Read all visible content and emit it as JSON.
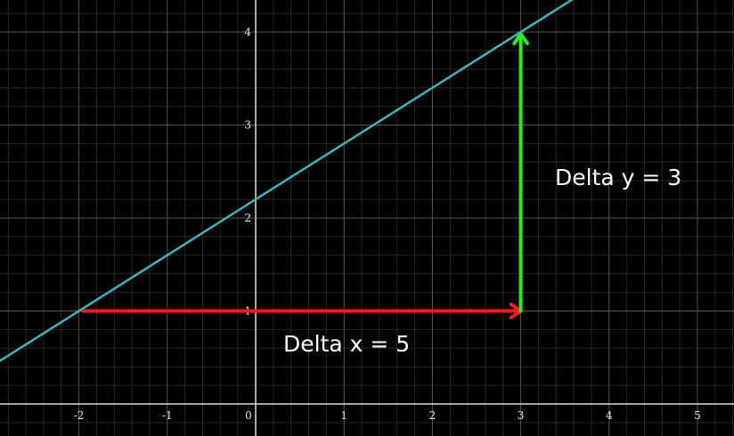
{
  "chart_data": {
    "type": "line",
    "title": "",
    "xlabel": "",
    "ylabel": "",
    "xlim": [
      -2.9,
      5.4
    ],
    "ylim": [
      -0.36,
      4.3
    ],
    "grid": true,
    "x_ticks": [
      "-2",
      "-1",
      "0",
      "1",
      "2",
      "3",
      "4",
      "5"
    ],
    "y_ticks": [
      "1",
      "2",
      "3",
      "4"
    ],
    "series": [
      {
        "color": "#3fb4bd",
        "x": [
          -3.0,
          3.65
        ],
        "y": [
          0.4,
          4.39
        ]
      }
    ],
    "arrows": [
      {
        "color": "#ff1a1a",
        "from": [
          -1.95,
          1.0
        ],
        "to": [
          3.0,
          1.0
        ],
        "label": "Delta x = 5"
      },
      {
        "color": "#22ee22",
        "from": [
          3.0,
          1.0
        ],
        "to": [
          3.0,
          3.98
        ],
        "label": "Delta y = 3"
      }
    ],
    "colors": {
      "background": "#000000",
      "axis": "#dddddd",
      "grid_major": "#555555",
      "grid_minor": "#262626"
    }
  }
}
